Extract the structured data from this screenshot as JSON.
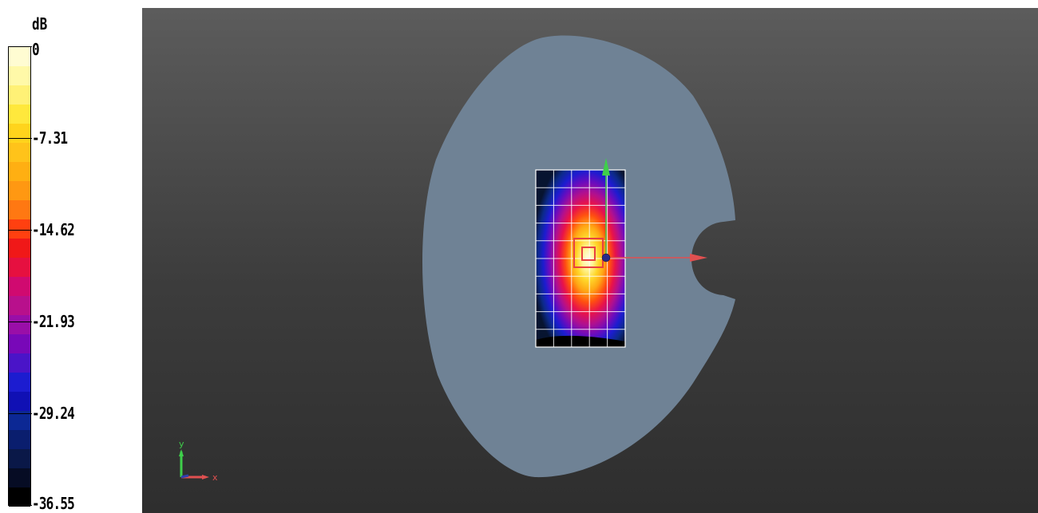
{
  "legend": {
    "unit": "dB",
    "ticks": [
      {
        "label": "0",
        "value": 0
      },
      {
        "label": "-7.31",
        "value": -7.31
      },
      {
        "label": "-14.62",
        "value": -14.62
      },
      {
        "label": "-21.93",
        "value": -21.93
      },
      {
        "label": "-29.24",
        "value": -29.24
      },
      {
        "label": "-36.55",
        "value": -36.55
      }
    ],
    "colors": [
      "#fffcd2",
      "#fff9a8",
      "#fff176",
      "#ffe83c",
      "#ffd41c",
      "#ffc31a",
      "#ffaf12",
      "#ff9812",
      "#ff7812",
      "#ff4010",
      "#f01818",
      "#e61040",
      "#d00a70",
      "#b8108c",
      "#9a0ea8",
      "#7808b8",
      "#4a14c8",
      "#1c1cd0",
      "#1010b4",
      "#0c2894",
      "#0a1e6e",
      "#0a1848",
      "#060c24",
      "#000000"
    ]
  },
  "scene": {
    "axes_labels": {
      "x": "x",
      "y": "y"
    },
    "colors": {
      "body": "#6f8295",
      "axis_x": "#e05050",
      "axis_y": "#3ecf4a",
      "origin": "#2a2a8a"
    }
  }
}
